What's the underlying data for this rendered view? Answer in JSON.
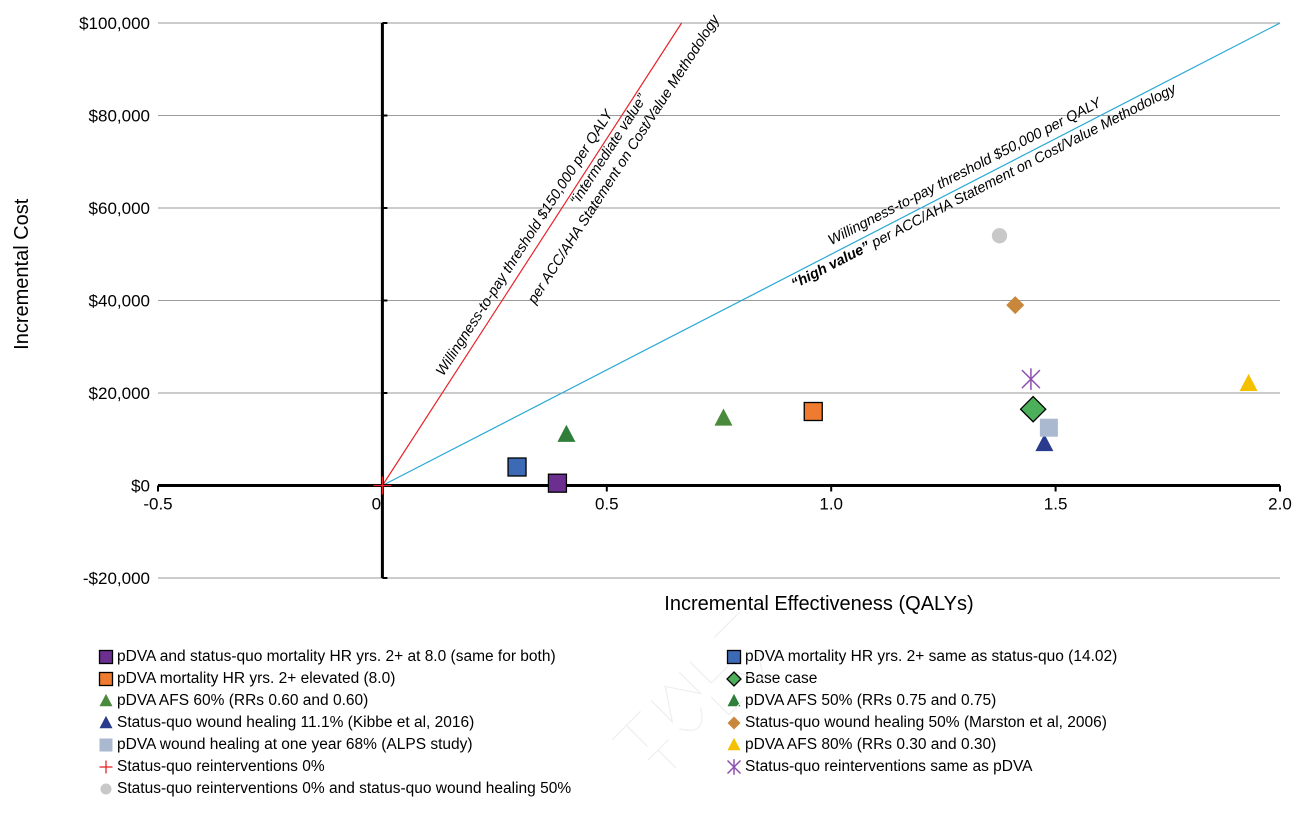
{
  "chart_data": {
    "type": "scatter",
    "xlabel": "Incremental Effectiveness (QALYs)",
    "ylabel": "Incremental Cost",
    "xlim": [
      -0.5,
      2.0
    ],
    "ylim": [
      -20000,
      100000
    ],
    "x_ticks": [
      -0.5,
      0,
      0.5,
      1.0,
      1.5,
      2.0
    ],
    "x_tick_labels": [
      "-0.5",
      "0",
      "0.5",
      "1.0",
      "1.5",
      "2.0"
    ],
    "y_ticks": [
      -20000,
      0,
      20000,
      40000,
      60000,
      80000,
      100000
    ],
    "y_tick_labels": [
      "-$20,000",
      "$0",
      "$20,000",
      "$40,000",
      "$60,000",
      "$80,000",
      "$100,000"
    ],
    "grid": "horizontal",
    "legend_position": "bottom",
    "threshold_lines": [
      {
        "slope": 150000,
        "color": "#e8232a",
        "label": "Willingness-to-pay threshold $150,000 per QALY"
      },
      {
        "slope": 50000,
        "color": "#2aa9d6",
        "label": "Willingness-to-pay threshold $50,000 per QALY"
      }
    ],
    "annotations": {
      "intermediate_line1": "“intermediate value”",
      "intermediate_line2": "per ACC/AHA Statement on Cost/Value Methodology",
      "high_bold": "“high value”",
      "high_rest": " per ACC/AHA Statement on Cost/Value Methodology"
    },
    "series": [
      {
        "name": "pDVA and status-quo mortality HR yrs. 2+ at 8.0 (same for both)",
        "marker": "square",
        "color": "#6a2f8f",
        "x": 0.39,
        "y": 500
      },
      {
        "name": "pDVA mortality HR yrs. 2+ same as status-quo (14.02)",
        "marker": "square",
        "color": "#3d6ab4",
        "x": 0.3,
        "y": 4000
      },
      {
        "name": "pDVA mortality HR yrs. 2+  elevated (8.0)",
        "marker": "square",
        "color": "#ee7b30",
        "x": 0.96,
        "y": 16000
      },
      {
        "name": "Base case",
        "marker": "diamond",
        "color": "#4caf5a",
        "x": 1.45,
        "y": 16500
      },
      {
        "name": "pDVA AFS 60% (RRs 0.60 and 0.60)",
        "marker": "triangle",
        "color": "#4a8a3c",
        "x": 0.76,
        "y": 14500
      },
      {
        "name": "pDVA AFS 50% (RRs 0.75 and 0.75)",
        "marker": "triangle",
        "color": "#2f7f3a",
        "x": 0.41,
        "y": 11000
      },
      {
        "name": "Status-quo wound healing 11.1% (Kibbe et al, 2016)",
        "marker": "triangle",
        "color": "#2a3a8c",
        "x": 1.475,
        "y": 9000
      },
      {
        "name": "Status-quo wound healing 50% (Marston et al, 2006)",
        "marker": "diamond-small",
        "color": "#c8873a",
        "x": 1.41,
        "y": 39000
      },
      {
        "name": "pDVA wound healing at one year 68% (ALPS study)",
        "marker": "square-light",
        "color": "#aab9d0",
        "x": 1.485,
        "y": 12500
      },
      {
        "name": "pDVA AFS 80% (RRs 0.30 and 0.30)",
        "marker": "triangle",
        "color": "#f5c000",
        "x": 1.93,
        "y": 22000
      },
      {
        "name": "Status-quo reinterventions 0%",
        "marker": "plus",
        "color": "#e8232a",
        "x": 0,
        "y": 0
      },
      {
        "name": "Status-quo reinterventions same as pDVA",
        "marker": "asterisk",
        "color": "#8f4fb0",
        "x": 1.445,
        "y": 23000
      },
      {
        "name": "Status-quo reinterventions 0% and status-quo wound healing 50%",
        "marker": "circle",
        "color": "#c8c8c8",
        "x": 1.375,
        "y": 54000
      }
    ]
  },
  "legend_layout": [
    [
      0,
      1
    ],
    [
      2,
      3
    ],
    [
      4,
      5
    ],
    [
      6,
      7
    ],
    [
      8,
      9
    ],
    [
      10,
      11
    ],
    [
      12
    ]
  ]
}
